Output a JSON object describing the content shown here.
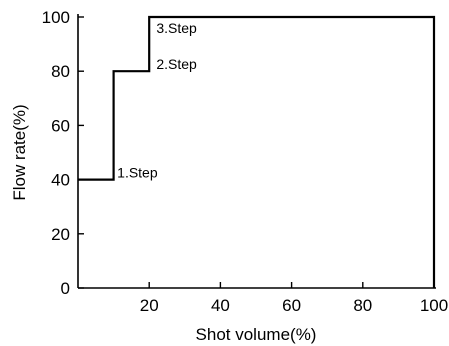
{
  "chart_data": {
    "type": "line",
    "title": "",
    "xlabel": "Shot volume(%)",
    "ylabel": "Flow rate(%)",
    "xlim": [
      0,
      100
    ],
    "ylim": [
      0,
      100
    ],
    "x_ticks": [
      20,
      40,
      60,
      80,
      100
    ],
    "y_ticks": [
      0,
      20,
      40,
      60,
      80,
      100
    ],
    "grid": false,
    "series": [
      {
        "x": [
          0,
          10,
          10,
          20,
          20,
          100,
          100
        ],
        "y": [
          40,
          40,
          80,
          80,
          100,
          100,
          0
        ]
      }
    ],
    "annotations": [
      {
        "text": "1.Step",
        "x": 11,
        "y": 40
      },
      {
        "text": "2.Step",
        "x": 22,
        "y": 80
      },
      {
        "text": "3.Step",
        "x": 22,
        "y": 100
      }
    ],
    "colors": {
      "line": "#000000",
      "axis": "#000000"
    }
  }
}
